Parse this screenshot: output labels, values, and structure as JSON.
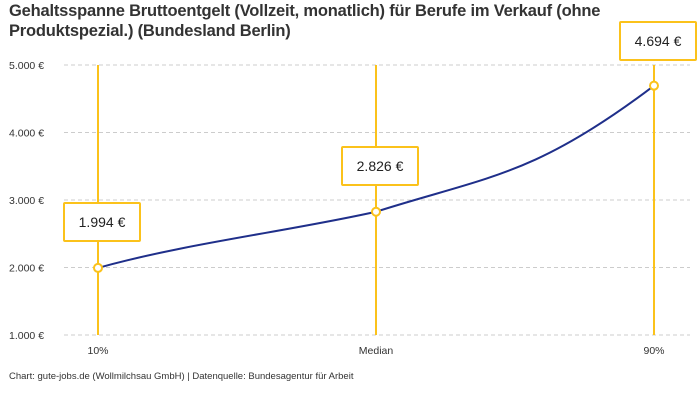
{
  "chart_data": {
    "type": "line",
    "title": "Gehaltsspanne Bruttoentgelt (Vollzeit, monatlich) für Berufe im Verkauf (ohne Produktspezial.) (Bundesland Berlin)",
    "categories": [
      "10%",
      "Median",
      "90%"
    ],
    "values": [
      1994,
      2826,
      4694
    ],
    "data_labels": [
      "1.994 €",
      "2.826 €",
      "4.694 €"
    ],
    "ylim": [
      1000,
      5000
    ],
    "yticks": [
      1000,
      2000,
      3000,
      4000,
      5000
    ],
    "ytick_labels": [
      "1.000 €",
      "2.000 €",
      "3.000 €",
      "4.000 €",
      "5.000 €"
    ],
    "grid": "horizontal dashed",
    "colors": {
      "line": "#1f2f8a",
      "markers": "#fbc21b",
      "gridline": "#cccccc"
    }
  },
  "footer": "Chart: gute-jobs.de (Wollmilchsau GmbH) | Datenquelle: Bundesagentur für Arbeit"
}
